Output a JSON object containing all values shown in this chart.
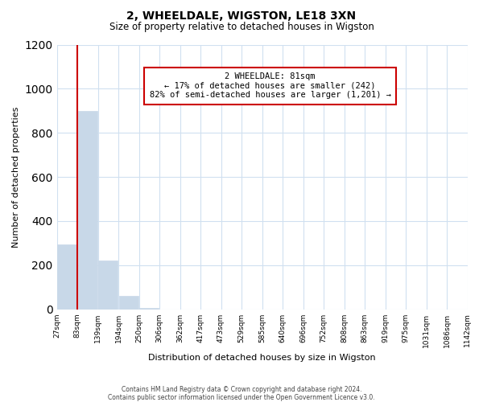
{
  "title": "2, WHEELDALE, WIGSTON, LE18 3XN",
  "subtitle": "Size of property relative to detached houses in Wigston",
  "xlabel": "Distribution of detached houses by size in Wigston",
  "ylabel": "Number of detached properties",
  "footnote1": "Contains HM Land Registry data © Crown copyright and database right 2024.",
  "footnote2": "Contains public sector information licensed under the Open Government Licence v3.0.",
  "annotation_title": "2 WHEELDALE: 81sqm",
  "annotation_line1": "← 17% of detached houses are smaller (242)",
  "annotation_line2": "82% of semi-detached houses are larger (1,201) →",
  "bar_color": "#c8d8e8",
  "marker_color": "#cc0000",
  "bar_heights": [
    295,
    900,
    222,
    60,
    5,
    0,
    0,
    0,
    0,
    0,
    0,
    0,
    0,
    0,
    0,
    0,
    0,
    0,
    0,
    0
  ],
  "bin_labels": [
    "27sqm",
    "83sqm",
    "139sqm",
    "194sqm",
    "250sqm",
    "306sqm",
    "362sqm",
    "417sqm",
    "473sqm",
    "529sqm",
    "585sqm",
    "640sqm",
    "696sqm",
    "752sqm",
    "808sqm",
    "863sqm",
    "919sqm",
    "975sqm",
    "1031sqm",
    "1086sqm",
    "1142sqm"
  ],
  "ylim": [
    0,
    1200
  ],
  "yticks": [
    0,
    200,
    400,
    600,
    800,
    1000,
    1200
  ],
  "grid_color": "#d0e0f0",
  "background_color": "#ffffff"
}
